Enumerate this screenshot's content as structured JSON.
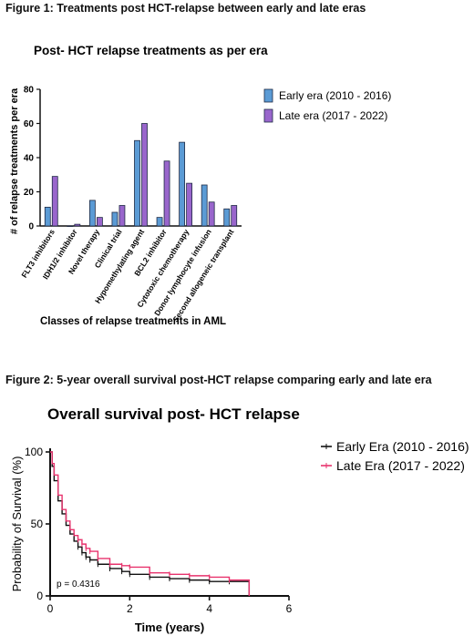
{
  "figure1_caption": "Figure 1: Treatments post HCT-relapse between early and late eras",
  "figure2_caption": "Figure 2: 5-year overall survival post-HCT relapse comparing early and late era",
  "chart_data": [
    {
      "type": "bar",
      "title": "Post- HCT relapse treatments as per era",
      "xlabel": "Classes of relapse treatments in AML",
      "ylabel": "# of relapse treatments per era",
      "ylim": [
        0,
        80
      ],
      "yticks": [
        "0",
        "20",
        "40",
        "60",
        "80"
      ],
      "categories": [
        "FLT3 inhibitors",
        "IDH1/2 inhibitor",
        "Novel therapy",
        "Clinical trial",
        "Hypomethylating agent",
        "BCL2 inhibitor",
        "Cytotoxic chemotherapy",
        "Donor lymphocyte infusion",
        "Second allogeneic transplant"
      ],
      "series": [
        {
          "name": "Early era (2010 - 2016)",
          "color": "#5b9bd5",
          "values": [
            11,
            0,
            15,
            8,
            50,
            5,
            49,
            24,
            10
          ]
        },
        {
          "name": "Late era (2017 - 2022)",
          "color": "#9966cc",
          "values": [
            29,
            1,
            5,
            12,
            60,
            38,
            25,
            14,
            12
          ]
        }
      ],
      "legend": "top-right",
      "grid": false
    },
    {
      "type": "line",
      "title": "Overall survival post- HCT relapse",
      "xlabel": "Time (years)",
      "ylabel": "Probability of Survival (%)",
      "xlim": [
        0,
        6
      ],
      "ylim": [
        0,
        100
      ],
      "xticks": [
        "0",
        "2",
        "4",
        "6"
      ],
      "yticks": [
        "0",
        "50",
        "100"
      ],
      "annotation": "p = 0.4316",
      "legend": "top-right",
      "grid": false,
      "series": [
        {
          "name": "Early Era (2010 - 2016)",
          "color": "#111111",
          "x": [
            0,
            0.05,
            0.1,
            0.2,
            0.3,
            0.4,
            0.5,
            0.6,
            0.7,
            0.8,
            0.9,
            1.0,
            1.2,
            1.5,
            1.8,
            2.0,
            2.5,
            3.0,
            3.5,
            4.0,
            4.5,
            5.0,
            5.0
          ],
          "y": [
            100,
            90,
            80,
            66,
            57,
            49,
            43,
            38,
            34,
            30,
            27,
            25,
            22,
            19,
            17,
            15,
            13,
            12,
            11,
            10,
            10,
            9,
            0
          ]
        },
        {
          "name": "Late Era (2017 - 2022)",
          "color": "#e8336d",
          "x": [
            0,
            0.05,
            0.1,
            0.2,
            0.3,
            0.4,
            0.5,
            0.6,
            0.7,
            0.8,
            0.9,
            1.0,
            1.2,
            1.5,
            1.8,
            2.0,
            2.5,
            3.0,
            3.5,
            4.0,
            4.5,
            5.0,
            5.0
          ],
          "y": [
            100,
            92,
            84,
            70,
            60,
            52,
            46,
            42,
            39,
            36,
            33,
            31,
            26,
            22,
            21,
            20,
            16,
            15,
            14,
            13,
            11,
            10,
            0
          ]
        }
      ]
    }
  ]
}
